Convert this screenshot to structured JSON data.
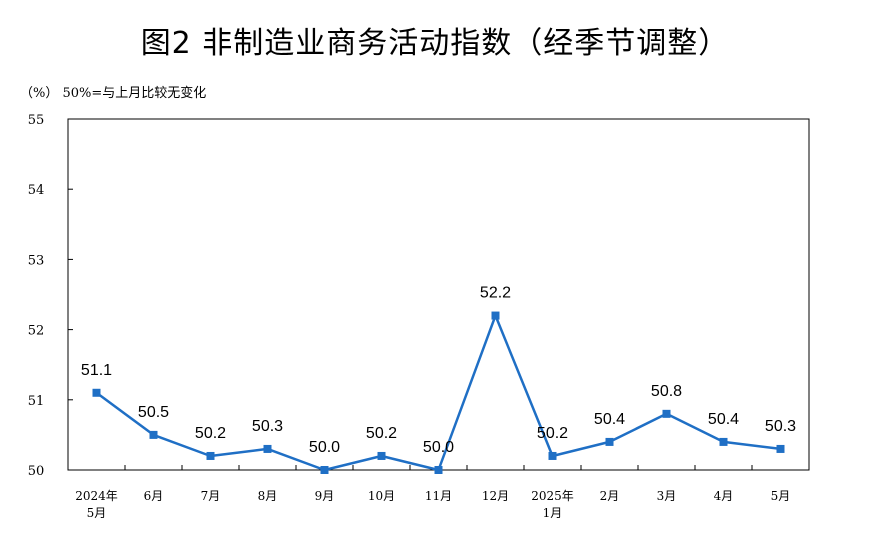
{
  "title": "图2  非制造业商务活动指数（经季节调整）",
  "unit_note": "（%）  50%=与上月比较无变化",
  "colors": {
    "series": "#1f6fc5",
    "axis": "#000000"
  },
  "chart_data": {
    "type": "line",
    "title": "图2  非制造业商务活动指数（经季节调整）",
    "ylabel": "（%）",
    "ylim": [
      50,
      55
    ],
    "yticks": [
      50,
      51,
      52,
      53,
      54,
      55
    ],
    "grid": false,
    "categories": [
      [
        "2024年",
        "5月"
      ],
      [
        "6月"
      ],
      [
        "7月"
      ],
      [
        "8月"
      ],
      [
        "9月"
      ],
      [
        "10月"
      ],
      [
        "11月"
      ],
      [
        "12月"
      ],
      [
        "2025年",
        "1月"
      ],
      [
        "2月"
      ],
      [
        "3月"
      ],
      [
        "4月"
      ],
      [
        "5月"
      ]
    ],
    "values": [
      51.1,
      50.5,
      50.2,
      50.3,
      50.0,
      50.2,
      50.0,
      52.2,
      50.2,
      50.4,
      50.8,
      50.4,
      50.3
    ],
    "data_labels": [
      "51.1",
      "50.5",
      "50.2",
      "50.3",
      "50.0",
      "50.2",
      "50.0",
      "52.2",
      "50.2",
      "50.4",
      "50.8",
      "50.4",
      "50.3"
    ],
    "marker": "square"
  }
}
